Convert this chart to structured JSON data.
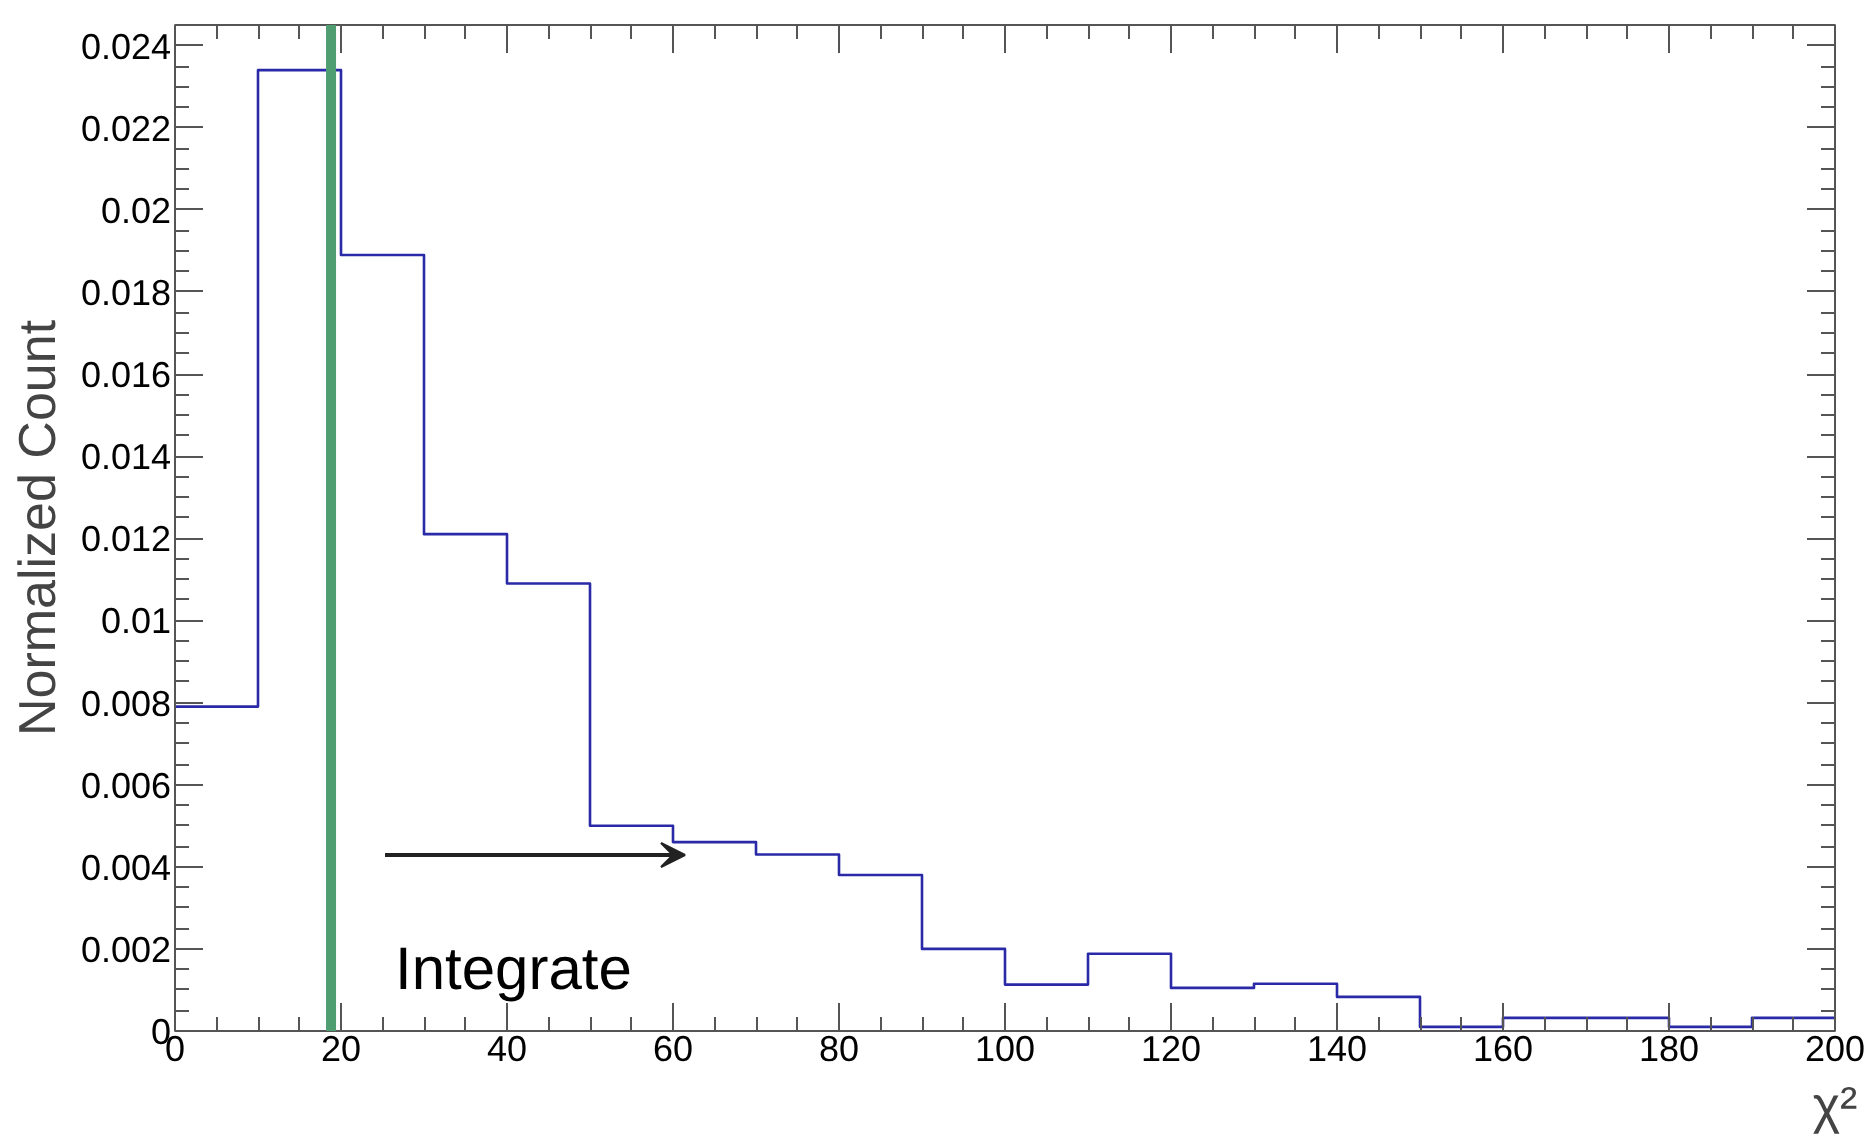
{
  "chart_data": {
    "type": "histogram",
    "xlabel": "χ²",
    "ylabel": "Normalized Count",
    "bins": [
      0,
      10,
      20,
      30,
      40,
      50,
      60,
      70,
      80,
      90,
      100,
      110,
      120,
      130,
      140,
      150,
      160,
      170,
      180,
      190,
      200
    ],
    "values": [
      0.0079,
      0.0234,
      0.0189,
      0.0121,
      0.0109,
      0.005,
      0.0046,
      0.0043,
      0.0038,
      0.002,
      0.00113,
      0.00188,
      0.00105,
      0.00115,
      0.00083,
      0.0001,
      0.00032,
      0.00032,
      0.0001,
      0.00032
    ],
    "color": "#2a2aa8",
    "xlim": [
      0,
      200
    ],
    "xticks": [
      0,
      20,
      40,
      60,
      80,
      100,
      120,
      140,
      160,
      180,
      200
    ],
    "ylim": [
      0,
      0.0245
    ],
    "yticks": [
      {
        "value": 0,
        "label": "0"
      },
      0.002,
      0.004,
      0.006,
      0.008,
      {
        "value": 0.01,
        "label": "0.01"
      },
      0.012,
      0.014,
      0.016,
      0.018,
      {
        "value": 0.02,
        "label": "0.02"
      },
      0.022,
      0.024
    ],
    "ref_lines": [
      {
        "axis": "x",
        "value": 18.8,
        "color": "#4e9e72"
      }
    ],
    "annotations": [
      "Integrate"
    ],
    "grid": false
  }
}
